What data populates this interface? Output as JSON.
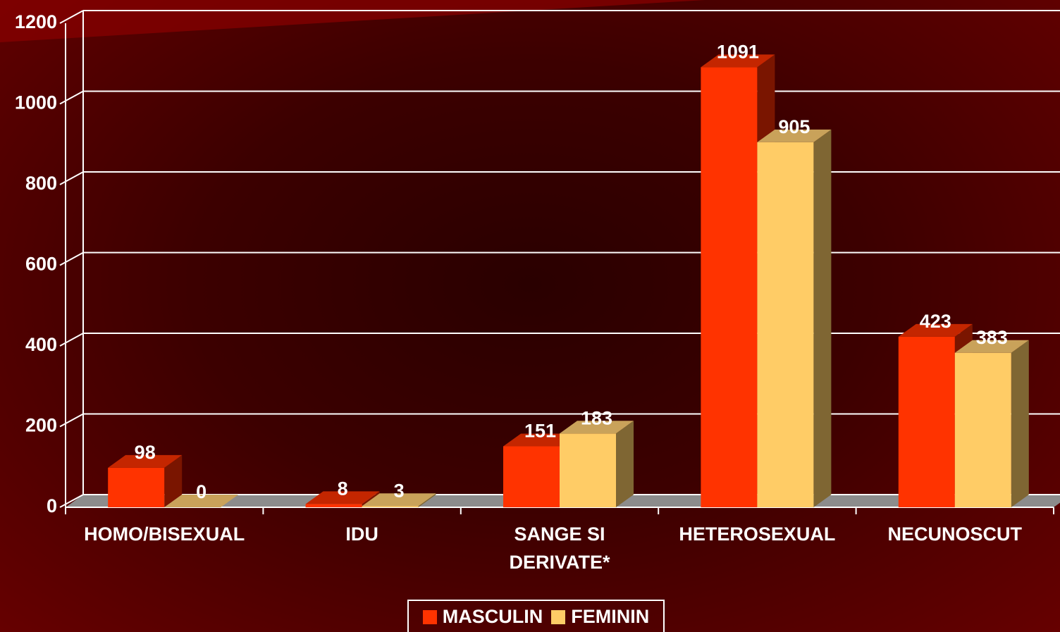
{
  "chart_data": {
    "type": "bar3d",
    "categories": [
      "HOMO/BISEXUAL",
      "IDU",
      "SANGE SI DERIVATE*",
      "HETEROSEXUAL",
      "NECUNOSCUT"
    ],
    "series": [
      {
        "name": "MASCULIN",
        "color": "#ff3300",
        "side": "#7a1500",
        "top": "#c42600",
        "values": [
          98,
          8,
          151,
          1091,
          423
        ]
      },
      {
        "name": "FEMININ",
        "color": "#ffcc66",
        "side": "#7f6633",
        "top": "#c9a25a",
        "values": [
          0,
          3,
          183,
          905,
          383
        ]
      }
    ],
    "ylim": [
      0,
      1200
    ],
    "yticks": [
      0,
      200,
      400,
      600,
      800,
      1000,
      1200
    ],
    "grid": true,
    "legend": "bottom"
  }
}
